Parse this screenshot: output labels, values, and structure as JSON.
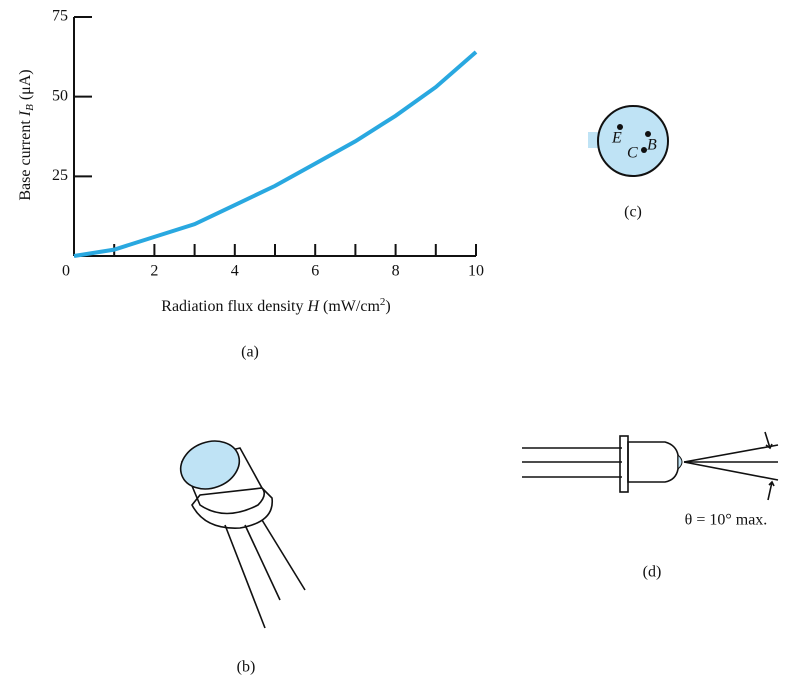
{
  "chart_data": {
    "type": "line",
    "ylabel": [
      "Base current ",
      "I",
      "B",
      " (μA)"
    ],
    "xlabel": [
      "Radiation flux density ",
      "H",
      " (mW/cm",
      "2",
      ")"
    ],
    "x": [
      0,
      1,
      2,
      3,
      4,
      5,
      6,
      7,
      8,
      9,
      10
    ],
    "series": [
      {
        "color": "#29a8e0",
        "values": [
          0,
          2,
          6,
          10,
          16,
          22,
          29,
          36,
          44,
          53,
          64
        ]
      }
    ],
    "xlim": [
      0,
      10
    ],
    "ylim": [
      0,
      75
    ],
    "xticks": [
      0,
      2,
      4,
      6,
      8,
      10
    ],
    "xminor": [
      1,
      3,
      5,
      7,
      9
    ],
    "yticks": [
      25,
      50,
      75
    ]
  },
  "captions": {
    "a": "(a)",
    "b": "(b)",
    "c": "(c)",
    "d": "(d)"
  },
  "pins": {
    "e": "E",
    "b": "B",
    "c": "C"
  },
  "angle_note": "θ = 10° max."
}
